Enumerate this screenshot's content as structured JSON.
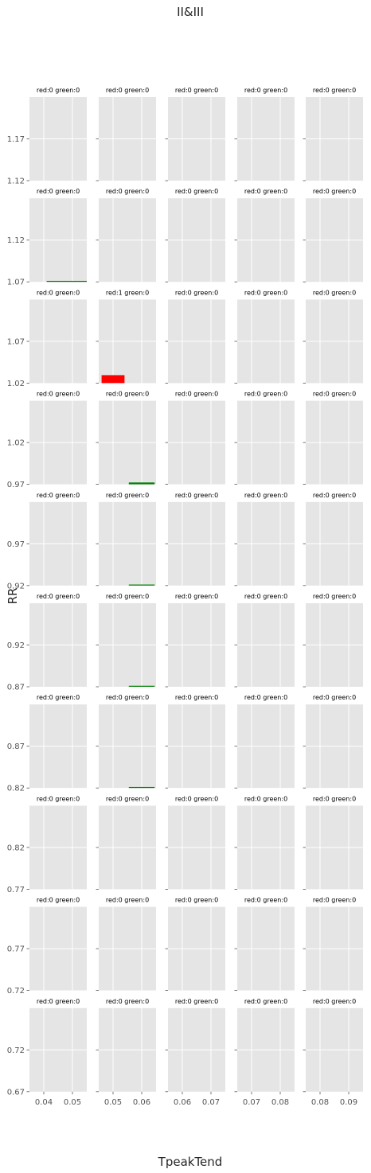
{
  "figure": {
    "title": "II&III",
    "xlabel": "TpeakTend",
    "ylabel": "RR"
  },
  "chart_data": {
    "type": "bar",
    "title": "II&III",
    "xlabel": "TpeakTend",
    "ylabel": "RR",
    "grid": true,
    "layout": "10 rows x 5 columns of small panels",
    "colors": {
      "red": "#ff0000",
      "green": "#008000",
      "panel_bg": "#e5e5e5",
      "grid": "#ffffff"
    },
    "rows": [
      {
        "ylim": [
          1.12,
          1.22
        ],
        "yticks": [
          "1.12",
          "1.17"
        ]
      },
      {
        "ylim": [
          1.07,
          1.17
        ],
        "yticks": [
          "1.07",
          "1.12"
        ]
      },
      {
        "ylim": [
          1.02,
          1.12
        ],
        "yticks": [
          "1.02",
          "1.07"
        ]
      },
      {
        "ylim": [
          0.97,
          1.07
        ],
        "yticks": [
          "0.97",
          "1.02"
        ]
      },
      {
        "ylim": [
          0.92,
          1.02
        ],
        "yticks": [
          "0.92",
          "0.97"
        ]
      },
      {
        "ylim": [
          0.87,
          0.97
        ],
        "yticks": [
          "0.87",
          "0.92"
        ]
      },
      {
        "ylim": [
          0.82,
          0.92
        ],
        "yticks": [
          "0.82",
          "0.87"
        ]
      },
      {
        "ylim": [
          0.77,
          0.87
        ],
        "yticks": [
          "0.77",
          "0.82"
        ]
      },
      {
        "ylim": [
          0.72,
          0.82
        ],
        "yticks": [
          "0.72",
          "0.77"
        ]
      },
      {
        "ylim": [
          0.67,
          0.77
        ],
        "yticks": [
          "0.67",
          "0.72"
        ]
      }
    ],
    "columns": [
      {
        "xlim": [
          0.035,
          0.055
        ],
        "xticks": [
          0.04,
          0.05
        ],
        "xtick_labels": [
          "0.04",
          "0.05"
        ]
      },
      {
        "xlim": [
          0.045,
          0.065
        ],
        "xticks": [
          0.05,
          0.06
        ],
        "xtick_labels": [
          "0.05",
          "0.06"
        ]
      },
      {
        "xlim": [
          0.055,
          0.075
        ],
        "xticks": [
          0.06,
          0.07
        ],
        "xtick_labels": [
          "0.06",
          "0.07"
        ]
      },
      {
        "xlim": [
          0.065,
          0.085
        ],
        "xticks": [
          0.07,
          0.08
        ],
        "xtick_labels": [
          "0.07",
          "0.08"
        ]
      },
      {
        "xlim": [
          0.075,
          0.095
        ],
        "xticks": [
          0.08,
          0.09
        ],
        "xtick_labels": [
          "0.08",
          "0.09"
        ]
      }
    ],
    "panel_titles": [
      [
        "red:0 green:0",
        "red:0 green:0",
        "red:0 green:0",
        "red:0 green:0",
        "red:0 green:0"
      ],
      [
        "red:0 green:0",
        "red:0 green:0",
        "red:0 green:0",
        "red:0 green:0",
        "red:0 green:0"
      ],
      [
        "red:0 green:0",
        "red:1 green:0",
        "red:0 green:0",
        "red:0 green:0",
        "red:0 green:0"
      ],
      [
        "red:0 green:0",
        "red:0 green:0",
        "red:0 green:0",
        "red:0 green:0",
        "red:0 green:0"
      ],
      [
        "red:0 green:0",
        "red:0 green:0",
        "red:0 green:0",
        "red:0 green:0",
        "red:0 green:0"
      ],
      [
        "red:0 green:0",
        "red:0 green:0",
        "red:0 green:0",
        "red:0 green:0",
        "red:0 green:0"
      ],
      [
        "red:0 green:0",
        "red:0 green:0",
        "red:0 green:0",
        "red:0 green:0",
        "red:0 green:0"
      ],
      [
        "red:0 green:0",
        "red:0 green:0",
        "red:0 green:0",
        "red:0 green:0",
        "red:0 green:0"
      ],
      [
        "red:0 green:0",
        "red:0 green:0",
        "red:0 green:0",
        "red:0 green:0",
        "red:0 green:0"
      ],
      [
        "red:0 green:0",
        "red:0 green:0",
        "red:0 green:0",
        "red:0 green:0",
        "red:0 green:0"
      ]
    ],
    "bars": [
      {
        "row": 1,
        "col": 0,
        "color": "green",
        "x": [
          0.041,
          0.055
        ],
        "y": [
          1.07,
          1.0712
        ]
      },
      {
        "row": 2,
        "col": 1,
        "color": "red",
        "x": [
          0.046,
          0.054
        ],
        "y": [
          1.02,
          1.0295
        ]
      },
      {
        "row": 3,
        "col": 1,
        "color": "green",
        "x": [
          0.0555,
          0.0645
        ],
        "y": [
          0.97,
          0.9722
        ]
      },
      {
        "row": 4,
        "col": 1,
        "color": "green",
        "x": [
          0.0555,
          0.0645
        ],
        "y": [
          0.92,
          0.9212
        ]
      },
      {
        "row": 5,
        "col": 1,
        "color": "green",
        "x": [
          0.0555,
          0.0645
        ],
        "y": [
          0.87,
          0.8712
        ]
      },
      {
        "row": 6,
        "col": 1,
        "color": "green",
        "x": [
          0.0555,
          0.0645
        ],
        "y": [
          0.82,
          0.8212
        ]
      }
    ]
  }
}
